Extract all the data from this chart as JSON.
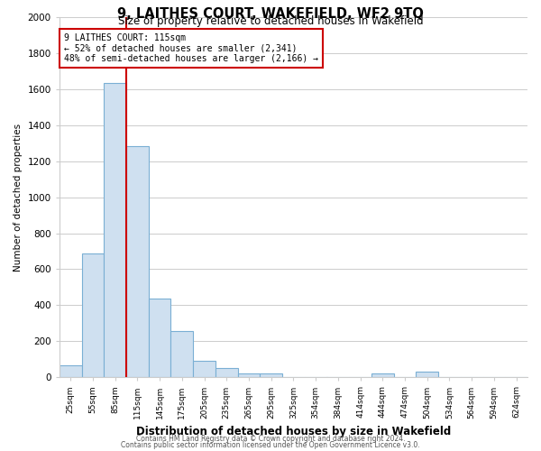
{
  "title": "9, LAITHES COURT, WAKEFIELD, WF2 9TQ",
  "subtitle": "Size of property relative to detached houses in Wakefield",
  "xlabel": "Distribution of detached houses by size in Wakefield",
  "ylabel": "Number of detached properties",
  "bar_color": "#cfe0f0",
  "bar_edge_color": "#7aafd4",
  "categories": [
    "25sqm",
    "55sqm",
    "85sqm",
    "115sqm",
    "145sqm",
    "175sqm",
    "205sqm",
    "235sqm",
    "265sqm",
    "295sqm",
    "325sqm",
    "354sqm",
    "384sqm",
    "414sqm",
    "444sqm",
    "474sqm",
    "504sqm",
    "534sqm",
    "564sqm",
    "594sqm",
    "624sqm"
  ],
  "values": [
    65,
    690,
    1635,
    1285,
    435,
    255,
    90,
    50,
    20,
    20,
    0,
    0,
    0,
    0,
    20,
    0,
    30,
    0,
    0,
    0,
    0
  ],
  "ylim": [
    0,
    2000
  ],
  "yticks": [
    0,
    200,
    400,
    600,
    800,
    1000,
    1200,
    1400,
    1600,
    1800,
    2000
  ],
  "vline_color": "#cc0000",
  "annotation_line1": "9 LAITHES COURT: 115sqm",
  "annotation_line2": "← 52% of detached houses are smaller (2,341)",
  "annotation_line3": "48% of semi-detached houses are larger (2,166) →",
  "annotation_box_color": "#ffffff",
  "annotation_box_edge": "#cc0000",
  "footer1": "Contains HM Land Registry data © Crown copyright and database right 2024.",
  "footer2": "Contains public sector information licensed under the Open Government Licence v3.0.",
  "background_color": "#ffffff",
  "grid_color": "#cccccc"
}
